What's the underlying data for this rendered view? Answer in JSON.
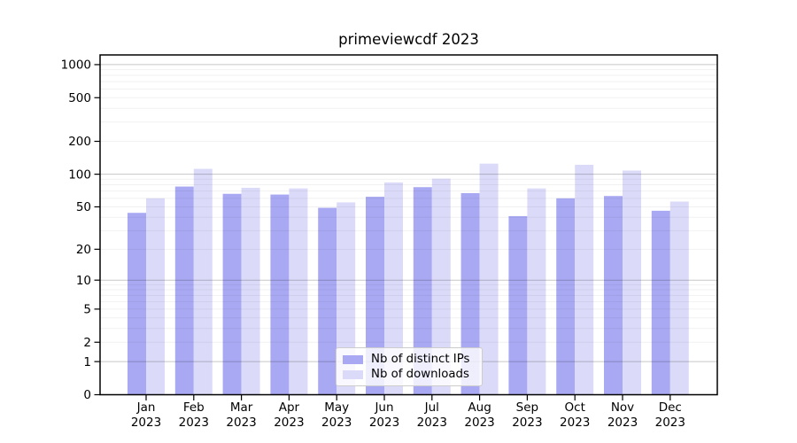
{
  "chart_data": {
    "type": "bar",
    "title": "primeviewcdf 2023",
    "xlabel": "",
    "ylabel": "",
    "categories": [
      "Jan",
      "Feb",
      "Mar",
      "Apr",
      "May",
      "Jun",
      "Jul",
      "Aug",
      "Sep",
      "Oct",
      "Nov",
      "Dec"
    ],
    "year_label": "2023",
    "series": [
      {
        "name": "Nb of distinct IPs",
        "color": "#a9a9f3",
        "values": [
          44,
          77,
          66,
          65,
          49,
          62,
          76,
          67,
          41,
          60,
          63,
          46
        ]
      },
      {
        "name": "Nb of downloads",
        "color": "#dbdbf9",
        "values": [
          60,
          112,
          75,
          74,
          55,
          84,
          91,
          125,
          74,
          122,
          108,
          56
        ]
      }
    ],
    "y_axis": {
      "scale": "log1p",
      "tick_values": [
        0,
        1,
        2,
        5,
        10,
        20,
        50,
        100,
        200,
        500,
        1000
      ],
      "tick_labels": [
        "0",
        "1",
        "2",
        "5",
        "10",
        "20",
        "50",
        "100",
        "200",
        "500",
        "1000"
      ],
      "ylim": [
        0,
        1220
      ],
      "major_grid_values": [
        1,
        10,
        100,
        1000
      ]
    },
    "grid": {
      "major": true,
      "minor": true
    },
    "legend": {
      "position": "bottom-center",
      "entries": [
        "Nb of distinct IPs",
        "Nb of downloads"
      ]
    },
    "colors": {
      "axis": "#000000",
      "major_grid": "rgba(0,0,0,0.22)",
      "minor_grid": "rgba(0,0,0,0.055)",
      "legend_border": "#cccccc"
    }
  }
}
